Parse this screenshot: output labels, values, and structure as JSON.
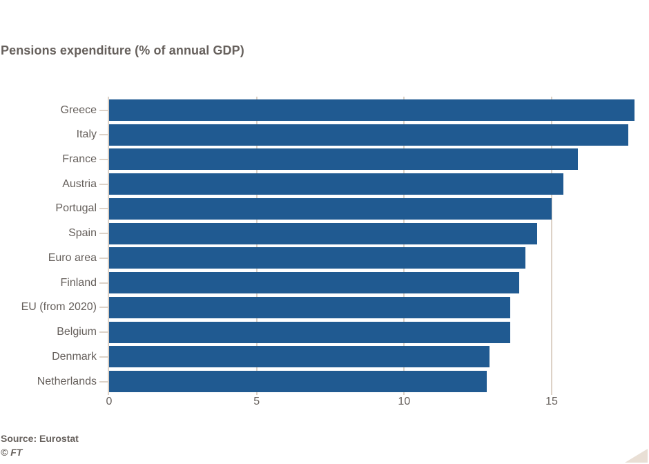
{
  "chart_data": {
    "type": "bar",
    "orientation": "horizontal",
    "title": "Pensions expenditure (% of annual GDP)",
    "categories": [
      "Greece",
      "Italy",
      "France",
      "Austria",
      "Portugal",
      "Spain",
      "Euro area",
      "Finland",
      "EU (from 2020)",
      "Belgium",
      "Denmark",
      "Netherlands"
    ],
    "values": [
      17.8,
      17.6,
      15.9,
      15.4,
      15.0,
      14.5,
      14.1,
      13.9,
      13.6,
      13.6,
      12.9,
      12.8
    ],
    "xlabel": "",
    "ylabel": "",
    "xlim": [
      0,
      18.3
    ],
    "xticks": [
      0,
      5,
      10,
      15
    ],
    "grid": "vertical gridlines at xticks, drawn behind bars",
    "legend": "none",
    "source": "Source: Eurostat",
    "credit": "© FT",
    "colors": {
      "bar": "#205a91",
      "grid": "#ddd2c7",
      "text": "#66605c",
      "corner_triangle": "#e9dfd5"
    }
  }
}
